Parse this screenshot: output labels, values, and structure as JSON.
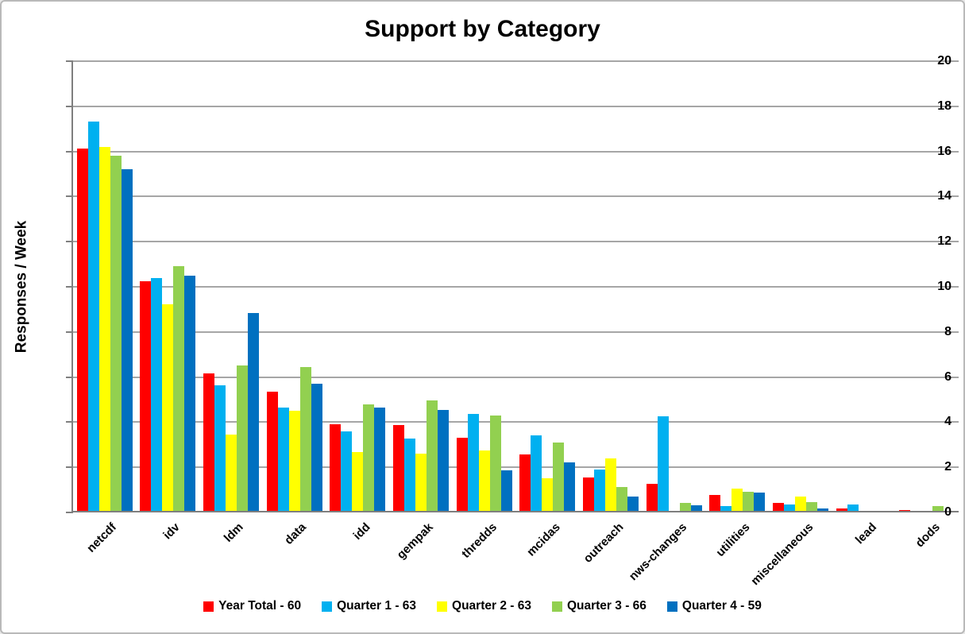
{
  "chart_data": {
    "type": "bar",
    "title": "Support by Category",
    "xlabel": "",
    "ylabel": "Responses / Week",
    "ylim": [
      0,
      20
    ],
    "yticks": [
      0,
      2,
      4,
      6,
      8,
      10,
      12,
      14,
      16,
      18,
      20
    ],
    "grid": true,
    "legend_position": "bottom",
    "gridline_color": "#a6a6a6",
    "axis_color": "#7f7f7f",
    "categories": [
      "netcdf",
      "idv",
      "ldm",
      "data",
      "idd",
      "gempak",
      "thredds",
      "mcidas",
      "outreach",
      "nws-changes",
      "utilities",
      "miscellaneous",
      "lead",
      "dods"
    ],
    "series": [
      {
        "name": "Year Total - 60",
        "color": "#FF0000",
        "values": [
          16.1,
          10.2,
          6.1,
          5.3,
          3.85,
          3.8,
          3.25,
          2.5,
          1.5,
          1.2,
          0.7,
          0.35,
          0.1,
          0.05
        ]
      },
      {
        "name": "Quarter 1 - 63",
        "color": "#00B0F0",
        "values": [
          17.3,
          10.35,
          5.6,
          4.6,
          3.55,
          3.2,
          4.3,
          3.35,
          1.85,
          4.2,
          0.2,
          0.3,
          0.3,
          0
        ]
      },
      {
        "name": "Quarter 2 - 63",
        "color": "#FFFF00",
        "values": [
          16.2,
          9.2,
          3.4,
          4.45,
          2.6,
          2.55,
          2.7,
          1.45,
          2.35,
          0,
          1.0,
          0.65,
          0,
          0
        ]
      },
      {
        "name": "Quarter 3 - 66",
        "color": "#92D050",
        "values": [
          15.8,
          10.9,
          6.45,
          6.4,
          4.75,
          4.9,
          4.25,
          3.05,
          1.05,
          0.35,
          0.85,
          0.4,
          0,
          0.2
        ]
      },
      {
        "name": "Quarter 4 - 59",
        "color": "#0070C0",
        "values": [
          15.2,
          10.45,
          8.8,
          5.65,
          4.6,
          4.5,
          1.8,
          2.15,
          0.65,
          0.25,
          0.8,
          0.1,
          0,
          0
        ]
      }
    ]
  }
}
